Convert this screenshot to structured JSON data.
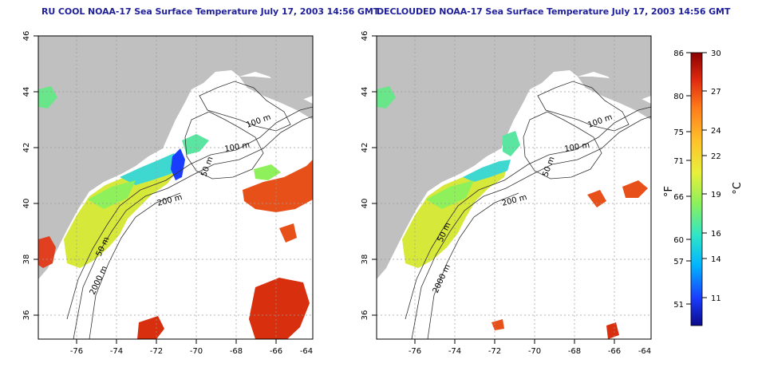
{
  "panels": [
    {
      "title": "RU COOL NOAA-17 Sea Surface Temperature July 17, 2003 14:56 GMT",
      "x_ticks": [
        "-76",
        "-74",
        "-72",
        "-70",
        "-68",
        "-66",
        "-64"
      ],
      "y_ticks": [
        "46",
        "44",
        "42",
        "40",
        "38",
        "36"
      ],
      "contour_labels": [
        "100 m",
        "100 m",
        "50 m",
        "200 m",
        "50 m",
        "2000 m"
      ]
    },
    {
      "title": "DECLOUDED NOAA-17 Sea Surface Temperature July 17, 2003 14:56 GMT",
      "x_ticks": [
        "-76",
        "-74",
        "-72",
        "-70",
        "-68",
        "-66",
        "-64"
      ],
      "y_ticks": [
        "46",
        "44",
        "42",
        "40",
        "38",
        "36"
      ],
      "contour_labels": [
        "100 m",
        "100 m",
        "50 m",
        "200 m",
        "50 m",
        "2000 m"
      ]
    }
  ],
  "colorbar": {
    "fahrenheit_ticks": [
      "86",
      "80",
      "75",
      "71",
      "66",
      "60",
      "57",
      "51"
    ],
    "celsius_ticks": [
      "30",
      "27",
      "24",
      "22",
      "19",
      "16",
      "14",
      "11"
    ],
    "fahrenheit_label": "°F",
    "celsius_label": "°C",
    "colors": [
      "#0a0a8a",
      "#1a3cff",
      "#00b4ff",
      "#2ee6c8",
      "#8ef05a",
      "#e8f03a",
      "#ffc02a",
      "#ff7a1a",
      "#e02a10",
      "#8a0000"
    ]
  }
}
